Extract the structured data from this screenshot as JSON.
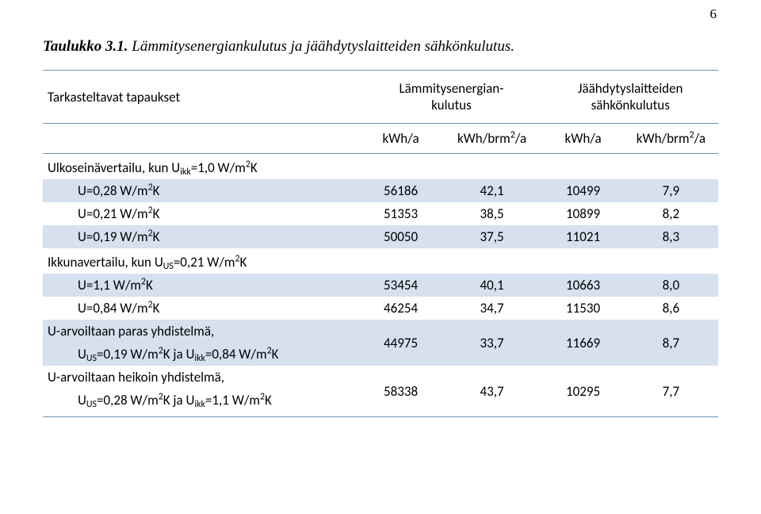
{
  "page_number": "6",
  "caption": {
    "label": "Taulukko 3.1.",
    "text": "Lämmitysenergiankulutus ja jäähdytyslaitteiden sähkönkulutus."
  },
  "table": {
    "hdr_cases": "Tarkasteltavat tapaukset",
    "hdr_heat_html": "Lämmitysenergian-<br>kulutus",
    "hdr_cool_html": "Jäähdytyslaitteiden<br>sähkönkulutus",
    "unit_kwh_a": "kWh/a",
    "unit_kwh_brm2_a_html": "kWh/brm<sup>2</sup>/a",
    "rows": [
      {
        "label_html": "Ulkoseinävertailu, kun U<sub>ikk</sub>=1,0 W/m<sup>2</sup>K",
        "indent": 0,
        "band": false
      },
      {
        "label_html": "U=0,28 W/m<sup>2</sup>K",
        "indent": 1,
        "band": true,
        "a": "56186",
        "b": "42,1",
        "c": "10499",
        "d": "7,9"
      },
      {
        "label_html": "U=0,21 W/m<sup>2</sup>K",
        "indent": 1,
        "band": false,
        "a": "51353",
        "b": "38,5",
        "c": "10899",
        "d": "8,2"
      },
      {
        "label_html": "U=0,19 W/m<sup>2</sup>K",
        "indent": 1,
        "band": true,
        "a": "50050",
        "b": "37,5",
        "c": "11021",
        "d": "8,3"
      },
      {
        "label_html": "Ikkunavertailu, kun U<sub>US</sub>=0,21 W/m<sup>2</sup>K",
        "indent": 0,
        "band": false
      },
      {
        "label_html": "U=1,1 W/m<sup>2</sup>K",
        "indent": 1,
        "band": true,
        "a": "53454",
        "b": "40,1",
        "c": "10663",
        "d": "8,0"
      },
      {
        "label_html": "U=0,84 W/m<sup>2</sup>K",
        "indent": 1,
        "band": false,
        "a": "46254",
        "b": "34,7",
        "c": "11530",
        "d": "8,6"
      },
      {
        "group": "start",
        "label_html": "U-arvoiltaan paras yhdistelmä,",
        "indent": 0,
        "band": true,
        "a": "44975",
        "b": "33,7",
        "c": "11669",
        "d": "8,7"
      },
      {
        "group": "end",
        "label_html": "U<sub>US</sub>=0,19 W/m<sup>2</sup>K ja U<sub>ikk</sub>=0,84 W/m<sup>2</sup>K",
        "indent": 1,
        "band": true
      },
      {
        "group": "start",
        "label_html": "U-arvoiltaan heikoin yhdistelmä,",
        "indent": 0,
        "band": false,
        "a": "58338",
        "b": "43,7",
        "c": "10295",
        "d": "7,7"
      },
      {
        "group": "end",
        "label_html": "U<sub>US</sub>=0,28 W/m<sup>2</sup>K ja U<sub>ikk</sub>=1,1 W/m<sup>2</sup>K",
        "indent": 1,
        "band": false,
        "last": true
      }
    ]
  },
  "style": {
    "border_color": "#6a91c0",
    "band_color": "#d6e0ef",
    "font_family": "Calibri",
    "caption_font_family": "Times New Roman"
  }
}
